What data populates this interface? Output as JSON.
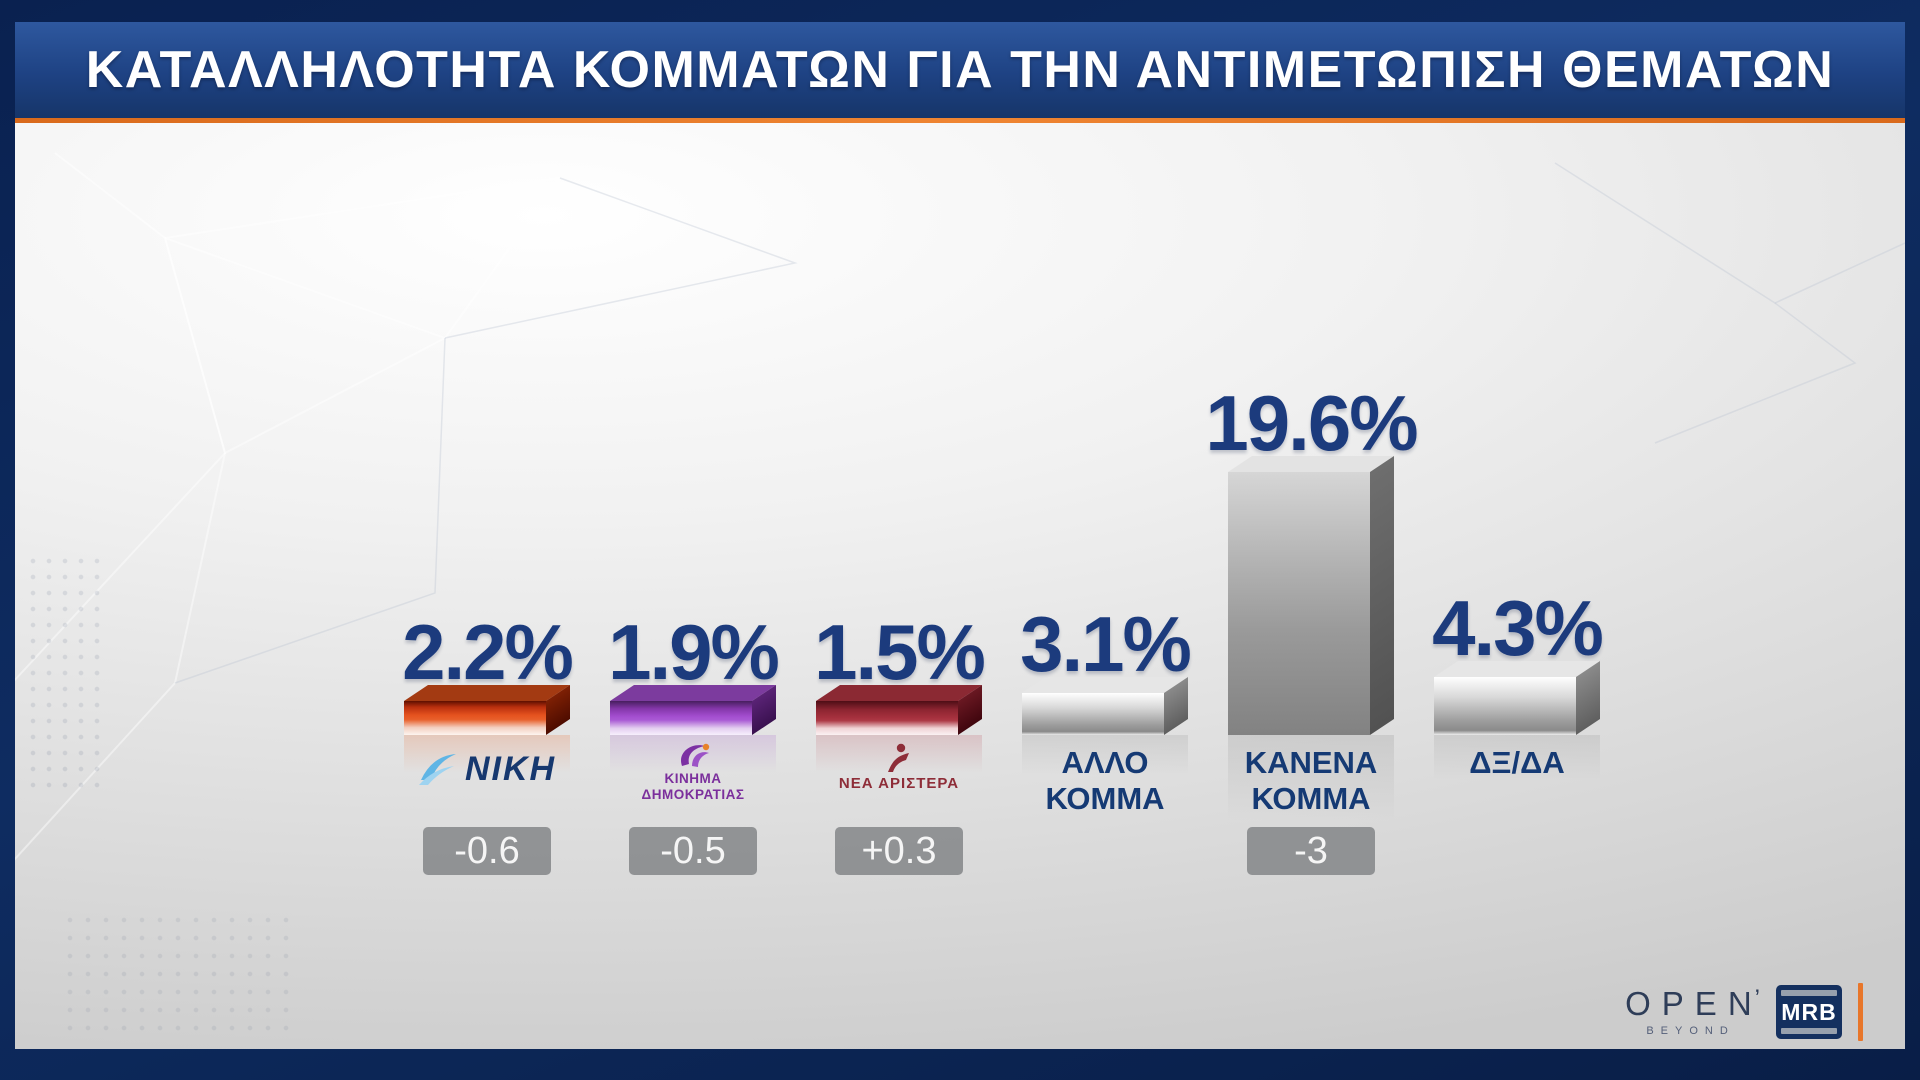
{
  "header": {
    "title": "ΚΑΤΑΛΛΗΛΟΤΗΤΑ ΚΟΜΜΑΤΩΝ ΓΙΑ ΤΗΝ ΑΝΤΙΜΕΤΩΠΙΣΗ ΘΕΜΑΤΩΝ"
  },
  "chart_data": {
    "type": "bar",
    "title": "ΚΑΤΑΛΛΗΛΟΤΗΤΑ ΚΟΜΜΑΤΩΝ ΓΙΑ ΤΗΝ ΑΝΤΙΜΕΤΩΠΙΣΗ ΘΕΜΑΤΩΝ",
    "unit": "%",
    "ylim": [
      0,
      20
    ],
    "grid": false,
    "legend": false,
    "categories": [
      "ΝΙΚΗ",
      "ΚΙΝΗΜΑ ΔΗΜΟΚΡΑΤΙΑΣ",
      "ΝΕΑ ΑΡΙΣΤΕΡΑ",
      "ΑΛΛΟ ΚΟΜΜΑ",
      "ΚΑΝΕΝΑ ΚΟΜΜΑ",
      "ΔΞ/ΔΑ"
    ],
    "values": [
      2.2,
      1.9,
      1.5,
      3.1,
      19.6,
      4.3
    ],
    "changes": [
      "-0.6",
      "-0.5",
      "+0.3",
      null,
      "-3",
      null
    ],
    "accent_color": "#e8762a",
    "value_color": "#1c3b7d",
    "bars": [
      {
        "name": "ΝΙΚΗ",
        "value": 2.2,
        "value_label": "2.2%",
        "change": "-0.6",
        "logo_text": "ΝΙΚΗ",
        "front_stops": [
          "#5e0f00 0%",
          "#b92f0e 18%",
          "#e5531f 42%",
          "#e8602b 55%",
          "#f3cfc0 78%",
          "#fdf4ef 100%"
        ],
        "side_top": "#7e2004",
        "side_bottom": "#4e0c00",
        "top_color": "#a33a12",
        "reflect": "#e88a5f"
      },
      {
        "name": "ΚΙΝΗΜΑ ΔΗΜΟΚΡΑΤΙΑΣ",
        "value": 1.9,
        "value_label": "1.9%",
        "change": "-0.5",
        "logo_line1": "ΚΙΝΗΜΑ",
        "logo_line2": "ΔΗΜΟΚΡΑΤΙΑΣ",
        "front_stops": [
          "#471f5e 0%",
          "#8336a8 22%",
          "#a44fd0 46%",
          "#a95ad4 56%",
          "#e3cdf0 80%",
          "#f7effc 100%"
        ],
        "side_top": "#5a2376",
        "side_bottom": "#3a1150",
        "top_color": "#7c3b9e",
        "reflect": "#b889d0"
      },
      {
        "name": "ΝΕΑ ΑΡΙΣΤΕΡΑ",
        "value": 1.5,
        "value_label": "1.5%",
        "change": "+0.3",
        "logo_text": "ΝΕΑ ΑΡΙΣΤΕΡΑ",
        "front_stops": [
          "#4e0e16 0%",
          "#8c2430 25%",
          "#a5303d 48%",
          "#ad3a46 58%",
          "#efd2d5 80%",
          "#fbf1f2 100%"
        ],
        "side_top": "#6a1822",
        "side_bottom": "#40060e",
        "top_color": "#8b2933",
        "reflect": "#c57a83"
      },
      {
        "name": "ΑΛΛΟ ΚΟΜΜΑ",
        "value": 3.1,
        "value_label": "3.1%",
        "change": null,
        "label_lines": [
          "ΑΛΛΟ",
          "ΚΟΜΜΑ"
        ],
        "front_stops": [
          "#ffffff 0%",
          "#d8d8d8 35%",
          "#9e9e9e 75%",
          "#8a8a8a 92%",
          "#eeeeee 100%"
        ],
        "side_top": "#8a8a8a",
        "side_bottom": "#5f5f5f",
        "top_color": "#e6e6e6",
        "reflect": "#a8a8a8"
      },
      {
        "name": "ΚΑΝΕΝΑ ΚΟΜΜΑ",
        "value": 19.6,
        "value_label": "19.6%",
        "change": "-3",
        "label_lines": [
          "ΚΑΝΕΝΑ",
          "ΚΟΜΜΑ"
        ],
        "front_stops": [
          "#d6d6d6 0%",
          "#b7b7b7 30%",
          "#9a9a9a 60%",
          "#828282 100%"
        ],
        "side_top": "#6e6e6e",
        "side_bottom": "#525252",
        "top_color": "#e3e3e3",
        "reflect": "#9f9f9f"
      },
      {
        "name": "ΔΞ/ΔΑ",
        "value": 4.3,
        "value_label": "4.3%",
        "change": null,
        "label_lines": [
          "ΔΞ/ΔΑ"
        ],
        "front_stops": [
          "#ffffff 0%",
          "#d8d8d8 35%",
          "#9e9e9e 75%",
          "#8a8a8a 92%",
          "#eeeeee 100%"
        ],
        "side_top": "#8a8a8a",
        "side_bottom": "#5f5f5f",
        "top_color": "#e6e6e6",
        "reflect": "#a8a8a8"
      }
    ]
  },
  "branding": {
    "open": "OPEN",
    "open_tick": "’",
    "beyond": "BEYOND",
    "mrb": "MRB"
  }
}
